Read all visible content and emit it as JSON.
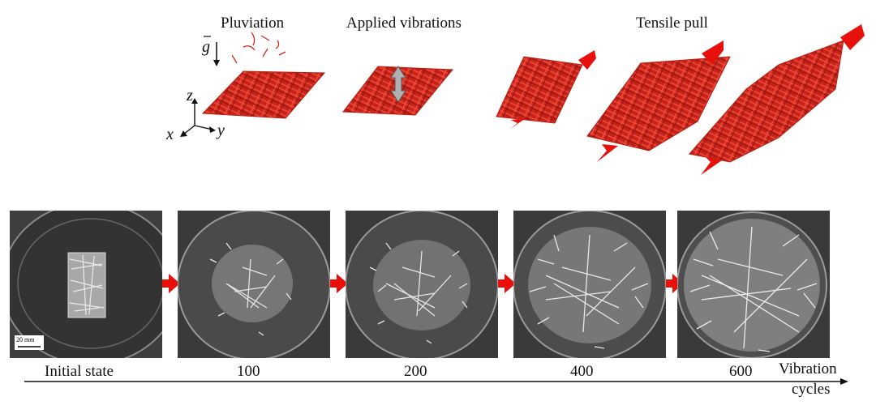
{
  "top_labels": {
    "pluviation": "Pluviation",
    "vibrations": "Applied vibrations",
    "tensile": "Tensile pull"
  },
  "axes": {
    "g": "g",
    "x": "x",
    "y": "y",
    "z": "z"
  },
  "scale_bar": "20 mm",
  "timeline": {
    "labels": [
      "Initial state",
      "100",
      "200",
      "400",
      "600"
    ],
    "axis_title_line1": "Vibration",
    "axis_title_line2": "cycles"
  },
  "colors": {
    "particle_red": "#d42a1e",
    "arrow_red": "#e8100a",
    "vibration_arrow": "#b0b0b0",
    "photo_bg": "#3a3a3a"
  }
}
